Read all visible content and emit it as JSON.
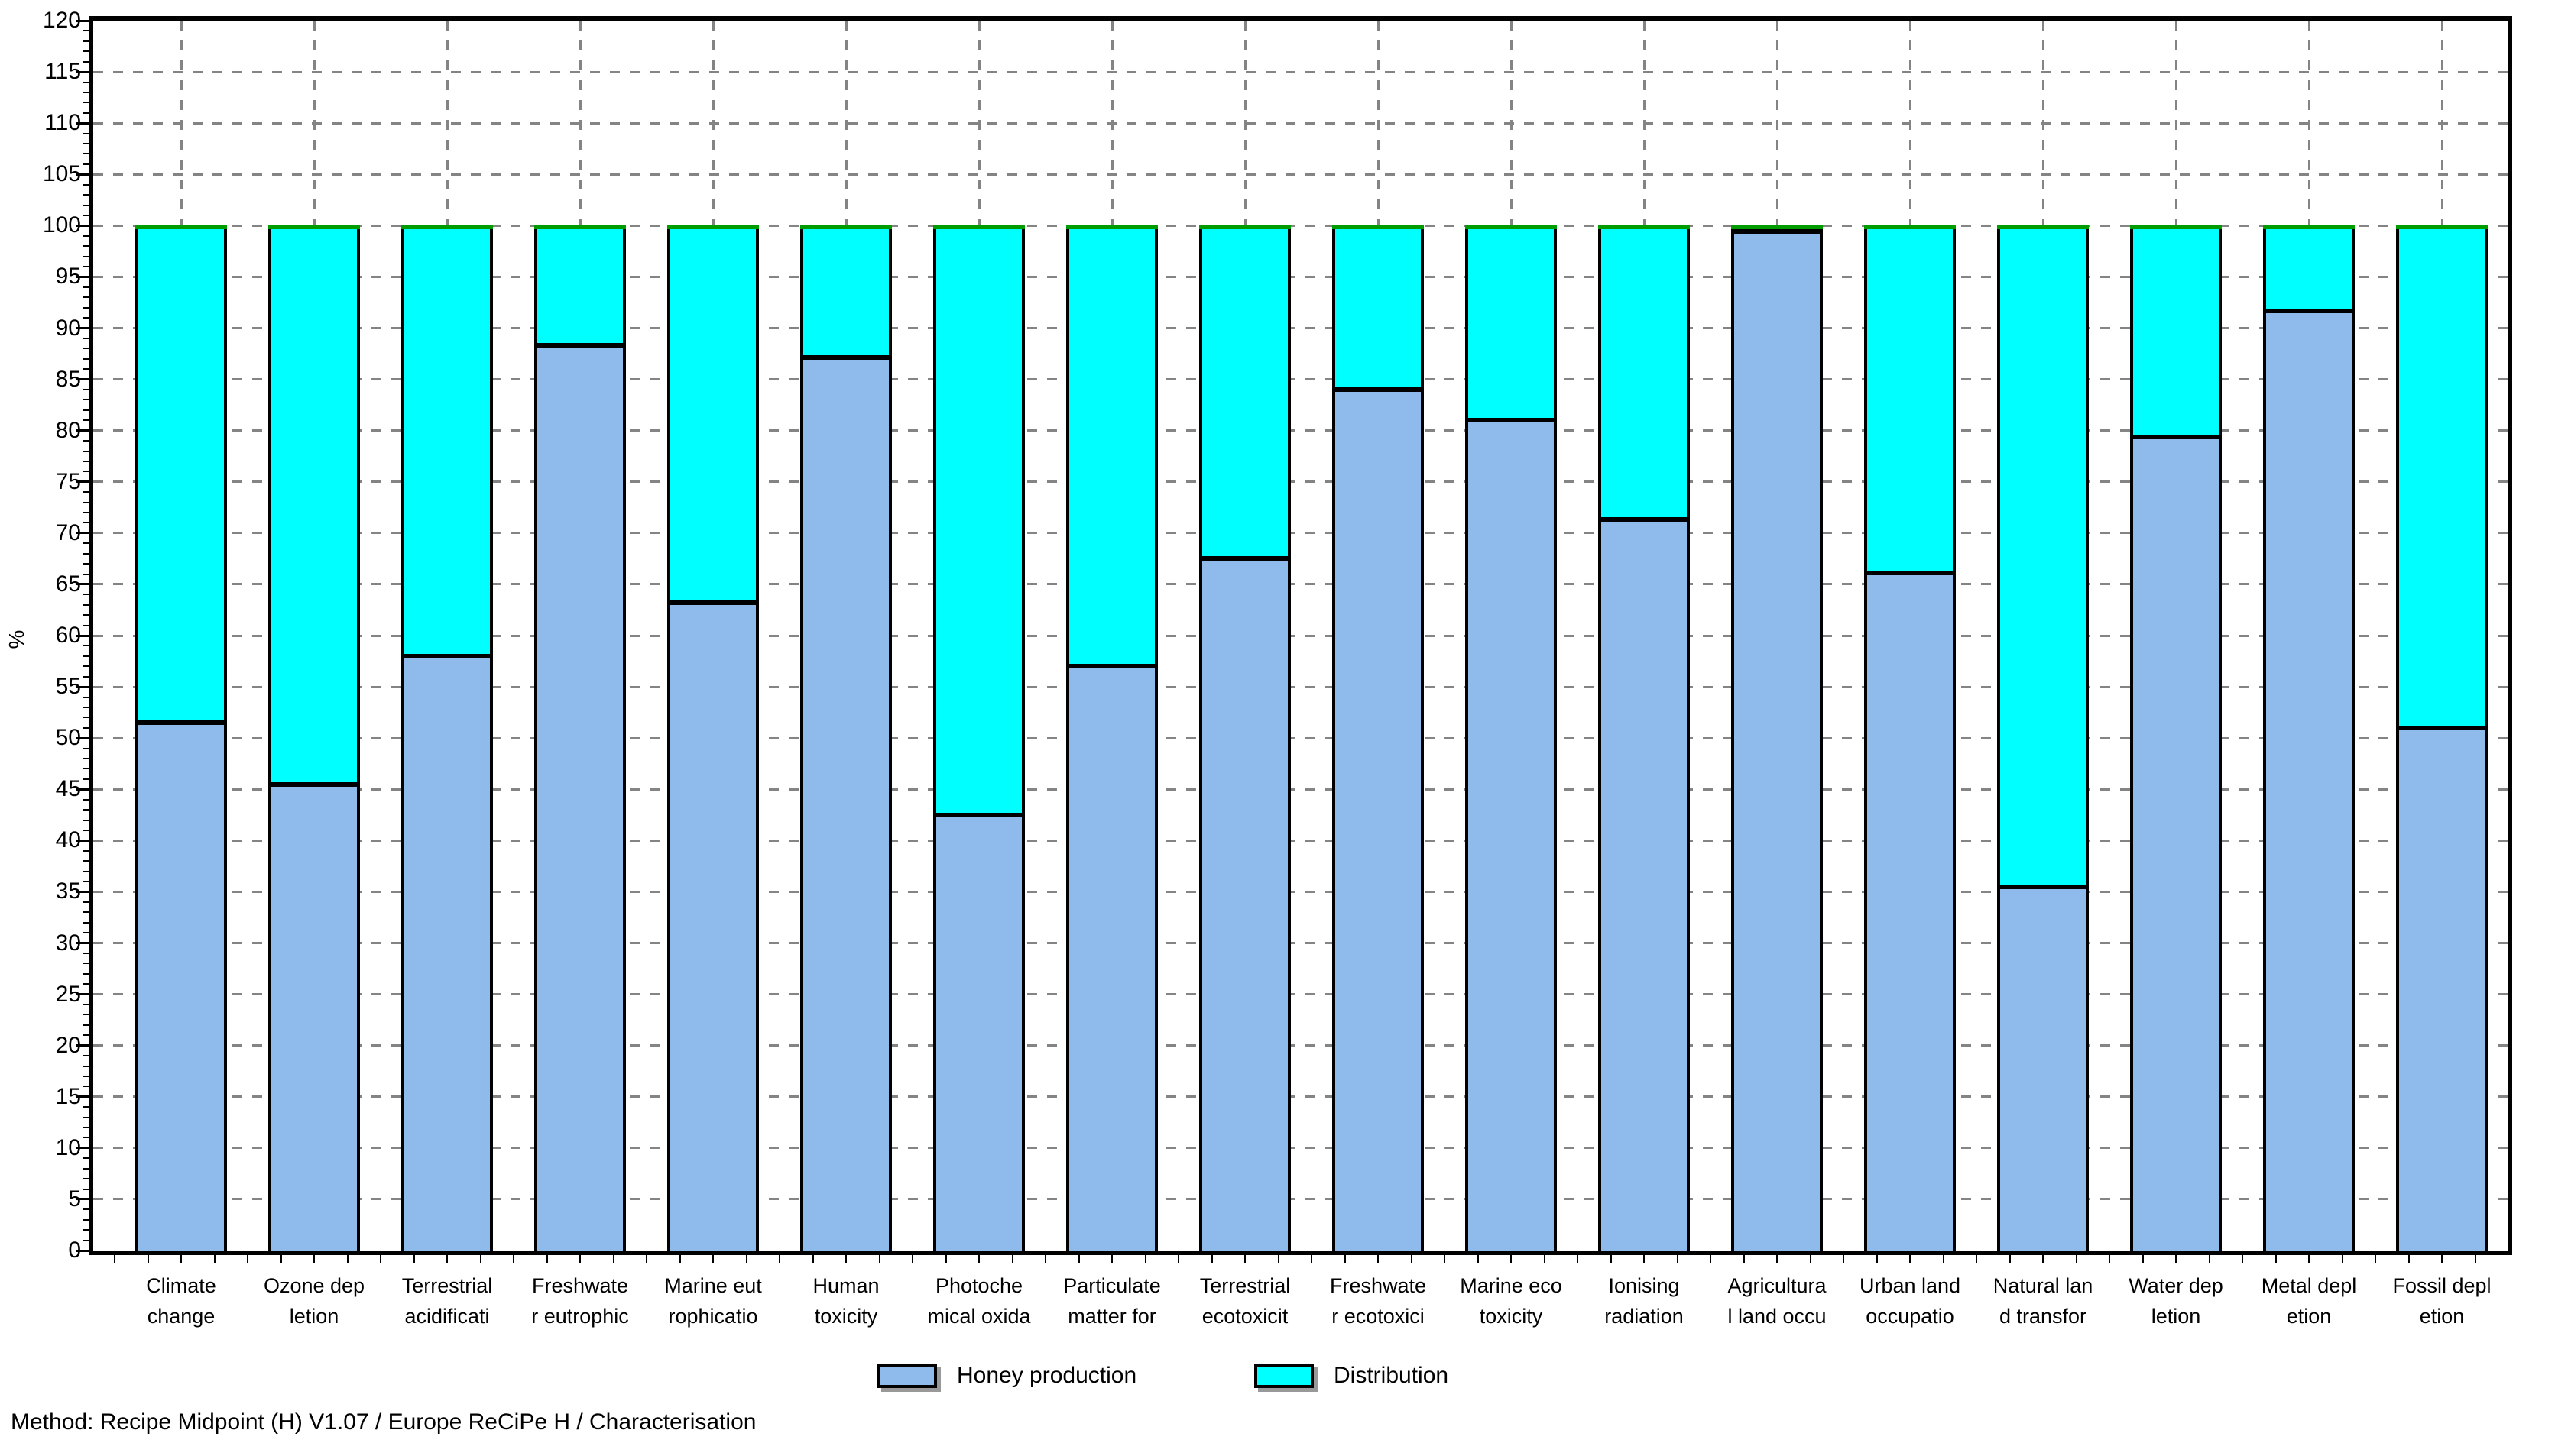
{
  "chart_data": {
    "type": "bar",
    "stacked": true,
    "title": "",
    "xlabel": "",
    "ylabel": "%",
    "ylim": [
      0,
      120
    ],
    "ytick_step": 5,
    "grid": "dashed horizontal every 5 units, dashed vertical at each category center",
    "legend_position": "bottom-center",
    "categories": [
      "Climate change",
      "Ozone dep letion",
      "Terrestrial acidificati",
      "Freshwate r eutrophic",
      "Marine eut rophicatio",
      "Human toxicity",
      "Photoche mical oxida",
      "Particulate matter for",
      "Terrestrial ecotoxicit",
      "Freshwate r ecotoxici",
      "Marine eco toxicity",
      "Ionising radiation",
      "Agricultura l land occu",
      "Urban land occupatio",
      "Natural lan d transfor",
      "Water dep letion",
      "Metal depl etion",
      "Fossil depl etion"
    ],
    "category_label_lines": [
      [
        "Climate",
        "change"
      ],
      [
        "Ozone dep",
        "letion"
      ],
      [
        "Terrestrial",
        "acidificati"
      ],
      [
        "Freshwate",
        "r eutrophic"
      ],
      [
        "Marine eut",
        "rophicatio"
      ],
      [
        "Human",
        "toxicity"
      ],
      [
        "Photoche",
        "mical oxida"
      ],
      [
        "Particulate",
        "matter for"
      ],
      [
        "Terrestrial",
        "ecotoxicit"
      ],
      [
        "Freshwate",
        "r ecotoxici"
      ],
      [
        "Marine eco",
        "toxicity"
      ],
      [
        "Ionising",
        "radiation"
      ],
      [
        "Agricultura",
        "l land occu"
      ],
      [
        "Urban land",
        "occupatio"
      ],
      [
        "Natural lan",
        "d transfor"
      ],
      [
        "Water dep",
        "letion"
      ],
      [
        "Metal depl",
        "etion"
      ],
      [
        "Fossil depl",
        "etion"
      ]
    ],
    "series": [
      {
        "name": "Honey production",
        "color": "#8FBAEC",
        "values": [
          51.5,
          45.5,
          58,
          88.3,
          63.2,
          87.1,
          42.5,
          57,
          67.5,
          84,
          81,
          71.3,
          99.4,
          66.1,
          35.5,
          79.4,
          91.7,
          51
        ]
      },
      {
        "name": "Distribution",
        "color": "#00FFFF",
        "values": [
          48.5,
          54.5,
          42,
          11.7,
          36.8,
          12.9,
          57.5,
          43,
          32.5,
          16,
          19,
          28.7,
          0.6,
          33.9,
          64.5,
          20.6,
          8.3,
          49
        ]
      }
    ],
    "stack_total": 100,
    "bar_top_line_color": "#009B00",
    "axis_color": "#000000",
    "gridline_color": "#848484"
  },
  "footer": {
    "method_line": "Method: Recipe Midpoint (H) V1.07 / Europe ReCiPe H / Characterisation"
  }
}
